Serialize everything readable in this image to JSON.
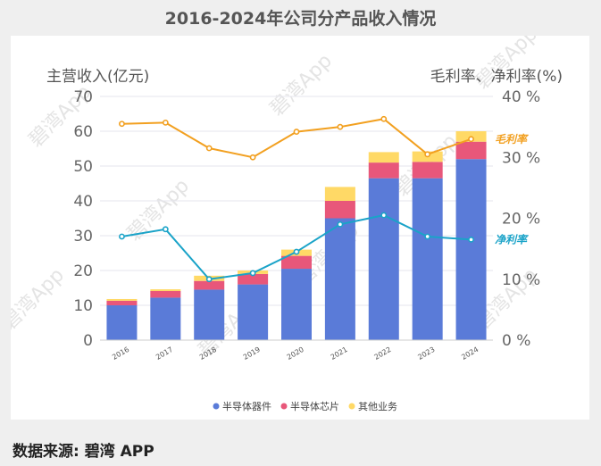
{
  "title": "2016-2024年公司分产品收入情况",
  "footer": "数据来源: 碧湾 APP",
  "watermark": "碧湾App",
  "chart_data": {
    "type": "bar",
    "stacked": true,
    "categories": [
      "2016",
      "2017",
      "2018",
      "2019",
      "2020",
      "2021",
      "2022",
      "2023",
      "2024"
    ],
    "series": [
      {
        "name": "半导体器件",
        "color": "#5a7bd8",
        "values": [
          10,
          12.2,
          14.5,
          16,
          20.5,
          35,
          46.5,
          46.5,
          52
        ]
      },
      {
        "name": "半导体芯片",
        "color": "#e8577a",
        "values": [
          1.3,
          1.9,
          2.5,
          3,
          3.7,
          5,
          4.5,
          4.7,
          5
        ]
      },
      {
        "name": "其他业务",
        "color": "#ffd966",
        "values": [
          0.5,
          0.5,
          1.5,
          1,
          1.8,
          4,
          3,
          3,
          3
        ]
      }
    ],
    "lines": [
      {
        "name": "毛利率",
        "color": "#f2a020",
        "values": [
          35.5,
          35.7,
          31.5,
          30,
          34.2,
          35,
          36.3,
          30.5,
          33
        ]
      },
      {
        "name": "净利率",
        "color": "#1aa3c8",
        "values": [
          17,
          18.2,
          10,
          11,
          14.5,
          19,
          20.5,
          17,
          16.5
        ]
      }
    ],
    "ylabel_left": "主营收入(亿元)",
    "ylabel_right": "毛利率、净利率(%)",
    "ylim_left": [
      0,
      70
    ],
    "yticks_left": [
      0,
      10,
      20,
      30,
      40,
      50,
      60,
      70
    ],
    "ylim_right": [
      0,
      40
    ],
    "yticks_right": [
      "0 %",
      "10 %",
      "20 %",
      "30 %",
      "40 %"
    ],
    "legend_position": "bottom",
    "grid": true
  }
}
